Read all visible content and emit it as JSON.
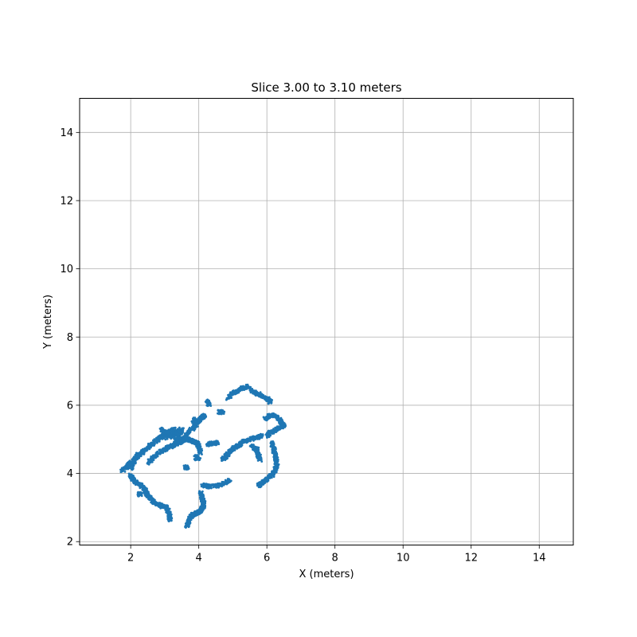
{
  "chart_data": {
    "type": "scatter",
    "title": "Slice 3.00 to 3.10 meters",
    "xlabel": "X (meters)",
    "ylabel": "Y (meters)",
    "xlim": [
      0.5,
      15.0
    ],
    "ylim": [
      1.9,
      15.0
    ],
    "xticks": [
      2,
      4,
      6,
      8,
      10,
      12,
      14
    ],
    "yticks": [
      2,
      4,
      6,
      8,
      10,
      12,
      14
    ],
    "xtick_labels": [
      "2",
      "4",
      "6",
      "8",
      "10",
      "12",
      "14"
    ],
    "ytick_labels": [
      "2",
      "4",
      "6",
      "8",
      "10",
      "12",
      "14"
    ],
    "grid": true,
    "point_color": "#1f77b4",
    "series": [
      {
        "segments": [
          [
            [
              1.75,
              4.08
            ],
            [
              1.9,
              4.2
            ],
            [
              2.05,
              4.35
            ],
            [
              2.2,
              4.5
            ],
            [
              2.35,
              4.62
            ],
            [
              2.5,
              4.75
            ],
            [
              2.65,
              4.88
            ],
            [
              2.8,
              5.0
            ],
            [
              2.95,
              5.12
            ],
            [
              3.1,
              5.22
            ],
            [
              3.3,
              5.3
            ]
          ],
          [
            [
              2.5,
              4.3
            ],
            [
              2.7,
              4.5
            ],
            [
              2.9,
              4.65
            ],
            [
              3.1,
              4.75
            ],
            [
              3.3,
              4.85
            ],
            [
              3.5,
              5.0
            ],
            [
              3.7,
              5.2
            ],
            [
              3.9,
              5.4
            ],
            [
              4.0,
              5.55
            ],
            [
              4.1,
              5.65
            ],
            [
              4.2,
              5.7
            ]
          ],
          [
            [
              3.0,
              4.7
            ],
            [
              3.2,
              4.8
            ],
            [
              3.4,
              4.9
            ],
            [
              3.5,
              4.95
            ],
            [
              3.6,
              5.0
            ],
            [
              3.7,
              5.0
            ],
            [
              3.8,
              4.95
            ],
            [
              3.9,
              4.92
            ],
            [
              3.95,
              4.9
            ],
            [
              4.0,
              4.8
            ],
            [
              4.05,
              4.6
            ]
          ],
          [
            [
              2.9,
              5.3
            ],
            [
              3.0,
              5.2
            ],
            [
              3.1,
              5.1
            ],
            [
              3.3,
              5.15
            ],
            [
              3.5,
              5.3
            ],
            [
              3.4,
              5.05
            ],
            [
              2.9,
              5.05
            ]
          ],
          [
            [
              2.0,
              3.95
            ],
            [
              2.05,
              3.85
            ],
            [
              2.15,
              3.75
            ],
            [
              2.3,
              3.65
            ],
            [
              2.4,
              3.55
            ],
            [
              2.45,
              3.45
            ],
            [
              2.5,
              3.35
            ],
            [
              2.6,
              3.25
            ],
            [
              2.75,
              3.12
            ],
            [
              2.9,
              3.05
            ],
            [
              3.05,
              3.0
            ],
            [
              3.1,
              2.9
            ],
            [
              3.15,
              2.75
            ],
            [
              3.15,
              2.62
            ]
          ],
          [
            [
              3.65,
              2.45
            ],
            [
              3.7,
              2.6
            ],
            [
              3.75,
              2.72
            ],
            [
              3.85,
              2.8
            ],
            [
              3.95,
              2.85
            ],
            [
              4.05,
              2.9
            ],
            [
              4.1,
              2.98
            ],
            [
              4.15,
              3.1
            ],
            [
              4.1,
              3.3
            ],
            [
              4.05,
              3.45
            ]
          ],
          [
            [
              4.1,
              3.65
            ],
            [
              4.3,
              3.62
            ],
            [
              4.5,
              3.63
            ],
            [
              4.7,
              3.68
            ],
            [
              4.9,
              3.8
            ]
          ],
          [
            [
              4.7,
              4.4
            ],
            [
              4.8,
              4.5
            ],
            [
              4.9,
              4.62
            ],
            [
              5.05,
              4.75
            ],
            [
              5.2,
              4.85
            ],
            [
              5.35,
              4.95
            ],
            [
              5.5,
              5.0
            ],
            [
              5.7,
              5.05
            ],
            [
              5.85,
              5.1
            ]
          ],
          [
            [
              4.85,
              6.2
            ],
            [
              5.0,
              6.35
            ],
            [
              5.2,
              6.45
            ],
            [
              5.4,
              6.55
            ],
            [
              5.6,
              6.4
            ],
            [
              5.8,
              6.3
            ],
            [
              6.0,
              6.2
            ],
            [
              6.1,
              6.1
            ]
          ],
          [
            [
              5.95,
              5.6
            ],
            [
              6.1,
              5.7
            ],
            [
              6.25,
              5.7
            ],
            [
              6.4,
              5.55
            ],
            [
              6.5,
              5.4
            ],
            [
              6.3,
              5.3
            ],
            [
              6.1,
              5.2
            ],
            [
              6.0,
              5.1
            ]
          ],
          [
            [
              6.15,
              4.9
            ],
            [
              6.2,
              4.7
            ],
            [
              6.25,
              4.5
            ],
            [
              6.3,
              4.3
            ],
            [
              6.25,
              4.1
            ],
            [
              6.15,
              3.95
            ],
            [
              6.0,
              3.85
            ],
            [
              5.9,
              3.75
            ],
            [
              5.8,
              3.68
            ],
            [
              5.75,
              3.65
            ]
          ],
          [
            [
              5.55,
              4.8
            ],
            [
              5.7,
              4.7
            ],
            [
              5.75,
              4.55
            ],
            [
              5.8,
              4.4
            ]
          ],
          [
            [
              4.25,
              4.85
            ],
            [
              4.4,
              4.88
            ],
            [
              4.55,
              4.9
            ]
          ],
          [
            [
              3.6,
              4.2
            ],
            [
              3.65,
              4.15
            ]
          ],
          [
            [
              3.9,
              4.5
            ],
            [
              4.0,
              4.4
            ]
          ],
          [
            [
              4.25,
              6.15
            ],
            [
              4.3,
              6.0
            ]
          ],
          [
            [
              4.6,
              5.8
            ],
            [
              4.7,
              5.8
            ]
          ],
          [
            [
              2.25,
              3.38
            ],
            [
              2.3,
              3.4
            ]
          ],
          [
            [
              2.0,
              4.15
            ],
            [
              2.1,
              4.35
            ],
            [
              2.2,
              4.55
            ]
          ],
          [
            [
              3.85,
              5.5
            ],
            [
              3.9,
              5.6
            ]
          ]
        ]
      }
    ]
  }
}
